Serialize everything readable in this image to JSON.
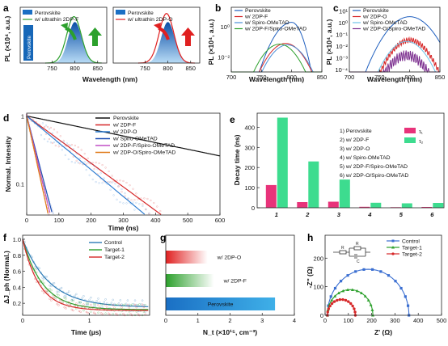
{
  "chart_data": [
    {
      "id": "a",
      "panel_label": "a",
      "type": "area",
      "xlabel": "Wavelength (nm)",
      "ylabel": "PL (×10⁴, a.u.)",
      "xticks": [
        750,
        800,
        850
      ],
      "xlim": [
        680,
        870
      ],
      "subplots": [
        {
          "legend": [
            "Perovskite",
            "w/ ultrathin 2DP-F"
          ],
          "annotation": "Perovskite",
          "series": [
            {
              "name": "Perovskite",
              "peak": 800,
              "peak_value": 5.3,
              "color": "#1a6fc4"
            },
            {
              "name": "w/ ultrathin 2DP-F",
              "peak": 798,
              "peak_value": 6.0,
              "color": "#2ca02c"
            }
          ]
        },
        {
          "legend": [
            "Perovskite",
            "w/ ultrathin 2DP-O"
          ],
          "annotation": "",
          "series": [
            {
              "name": "Perovskite",
              "peak": 800,
              "peak_value": 5.3,
              "color": "#1a6fc4"
            },
            {
              "name": "w/ ultrathin 2DP-O",
              "peak": 797,
              "peak_value": 6.4,
              "color": "#e02020"
            }
          ]
        }
      ]
    },
    {
      "id": "b",
      "panel_label": "b",
      "type": "line",
      "yscale": "log",
      "xlabel": "Wavelength (nm)",
      "ylabel": "PL (×10⁴, a.u.)",
      "xticks": [
        700,
        750,
        800,
        850
      ],
      "xlim": [
        700,
        850
      ],
      "yticks": [
        "10⁻²",
        "10⁰"
      ],
      "ylim_log10": [
        -3,
        1.3
      ],
      "series": [
        {
          "name": "Perovskite",
          "color": "#1f5fbf",
          "peak": 800,
          "peak_log10": 0.3
        },
        {
          "name": "w/ 2DP-F",
          "color": "#d62728",
          "peak": 790,
          "peak_log10": -1.1
        },
        {
          "name": "w/ Spiro-OMeTAD",
          "color": "#4a8fd8",
          "peak": 793,
          "peak_log10": -1.2
        },
        {
          "name": "w/ 2DP-F/Spiro-OMeTAD",
          "color": "#2ca02c",
          "peak": 780,
          "peak_log10": -1.15
        }
      ]
    },
    {
      "id": "c",
      "panel_label": "c",
      "type": "line",
      "yscale": "log",
      "xlabel": "Wavelength (nm)",
      "ylabel": "PL (×10⁴, a.u.)",
      "xticks": [
        700,
        750,
        800,
        850
      ],
      "xlim": [
        700,
        850
      ],
      "yticks": [
        "10⁻⁴",
        "10⁻³",
        "10⁻²",
        "10⁻¹",
        "10⁰",
        "10¹"
      ],
      "ylim_log10": [
        -4.2,
        1.3
      ],
      "series": [
        {
          "name": "Perovskite",
          "color": "#1f5fbf",
          "peak": 800,
          "peak_log10": 0.5
        },
        {
          "name": "w/ 2DP-O",
          "color": "#d62728",
          "peak": 800,
          "peak_log10": -1.5
        },
        {
          "name": "w/ Spiro-OMeTAD",
          "color": "#6ec3e8",
          "peak": 795,
          "peak_log10": -1.6
        },
        {
          "name": "w/ 2DP-O/Spiro-OMeTAD",
          "color": "#7b2d8e",
          "peak": 795,
          "peak_log10": -2.8
        }
      ]
    },
    {
      "id": "d",
      "panel_label": "d",
      "type": "line",
      "yscale": "log",
      "xlabel": "Time (ns)",
      "ylabel": "Normal. Intensity",
      "xticks": [
        0,
        100,
        200,
        300,
        400,
        500,
        600
      ],
      "xlim": [
        0,
        600
      ],
      "yticks": [
        "1",
        "0.1"
      ],
      "ylim": [
        0.035,
        1.1
      ],
      "series": [
        {
          "name": "Perovskite",
          "color": "#111111",
          "tau": 444
        },
        {
          "name": "w/ 2DP-F",
          "color": "#d62728",
          "tau": 125
        },
        {
          "name": "w/ 2DP-O",
          "color": "#2b7bd1",
          "tau": 110
        },
        {
          "name": "w/ Spiro-OMeTAD",
          "color": "#1f4fb4",
          "tau": 24
        },
        {
          "name": "w/ 2DP-F/Spiro-OMeTAD",
          "color": "#c14fc6",
          "tau": 22
        },
        {
          "name": "w/ 2DP-O/Spiro-OMeTAD",
          "color": "#e07b1a",
          "tau": 20
        }
      ]
    },
    {
      "id": "e",
      "panel_label": "e",
      "type": "bar",
      "ylabel": "Decay time (ns)",
      "categories": [
        "1",
        "2",
        "3",
        "4",
        "5",
        "6"
      ],
      "yticks": [
        0,
        100,
        200,
        300,
        400
      ],
      "ylim": [
        0,
        470
      ],
      "series": [
        {
          "name": "τ₁",
          "color": "#e8337a",
          "values": [
            113,
            28,
            30,
            5,
            3,
            4
          ]
        },
        {
          "name": "τ₂",
          "color": "#3ddc8f",
          "values": [
            448,
            230,
            140,
            25,
            22,
            24
          ]
        }
      ],
      "labels": [
        "1) Perovskite",
        "2) w/ 2DP-F",
        "3) w/ 2DP-O",
        "4) w/ Spiro-OMeTAD",
        "5) w/ 2DP-F/Spiro-OMeTAD",
        "6) w/ 2DP-O/Spiro-OMeTAD"
      ]
    },
    {
      "id": "f",
      "panel_label": "f",
      "type": "scatter",
      "xlabel": "Time (µs)",
      "ylabel": "ΔJ_ph (Normal.)",
      "xticks": [
        0,
        1
      ],
      "xlim": [
        0,
        1.9
      ],
      "yticks": [
        0.2,
        0.4,
        0.6,
        0.8,
        1.0
      ],
      "ylim": [
        0.05,
        1.05
      ],
      "series": [
        {
          "name": "Control",
          "color": "#2c7bb6",
          "tau": 0.4,
          "plateau": 0.15
        },
        {
          "name": "Target-1",
          "color": "#2ca02c",
          "tau": 0.3,
          "plateau": 0.12
        },
        {
          "name": "Target-2",
          "color": "#d62728",
          "tau": 0.25,
          "plateau": 0.11
        }
      ]
    },
    {
      "id": "g",
      "panel_label": "g",
      "type": "bar",
      "orientation": "horizontal",
      "xlabel": "N_t (×10¹⁵, cm⁻³)",
      "xticks": [
        0,
        1,
        2,
        3,
        4
      ],
      "xlim": [
        0,
        4
      ],
      "categories": [
        "w/ 2DP-O",
        "w/ 2DP-F",
        "Perovskite"
      ],
      "values": [
        1.3,
        1.5,
        3.4
      ],
      "colors": [
        "#e02020",
        "#2ca02c",
        "#1a6fc4"
      ]
    },
    {
      "id": "h",
      "panel_label": "h",
      "type": "scatter",
      "xlabel": "Z' (Ω)",
      "ylabel": "-Z'' (Ω)",
      "xticks": [
        0,
        100,
        200,
        300,
        400,
        500
      ],
      "xlim": [
        0,
        500
      ],
      "yticks": [
        0,
        100,
        200
      ],
      "ylim": [
        0,
        280
      ],
      "circuit": {
        "R1": "R",
        "R2": "R",
        "C": "C"
      },
      "series": [
        {
          "name": "Control",
          "color": "#3b6fd1",
          "z_start": 10,
          "z_end": 360
        },
        {
          "name": "Target-1",
          "color": "#2ca02c",
          "z_start": 10,
          "z_end": 205
        },
        {
          "name": "Target-2",
          "color": "#d62728",
          "z_start": 10,
          "z_end": 130
        }
      ]
    }
  ]
}
